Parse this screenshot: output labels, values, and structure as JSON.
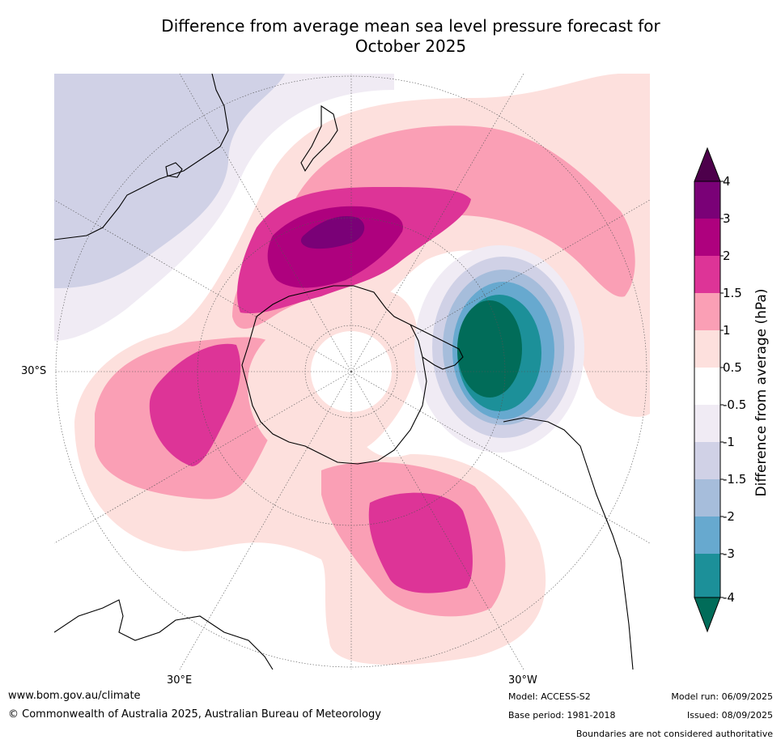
{
  "title_line1": "Difference from average mean sea level pressure forecast for",
  "title_line2": "October 2025",
  "map": {
    "lat_labels": [
      "30°S"
    ],
    "lon_labels": [
      "30°E",
      "30°W"
    ],
    "colors": {
      "land_coastline": "#000000",
      "graticule": "#555555",
      "bg_positive_far": "#d0d1e6",
      "neutral": "#ffffff"
    },
    "features": [
      {
        "name": "positive-anomaly-south-pacific",
        "max_category": "3 to 4"
      },
      {
        "name": "positive-anomaly-indian-ocean",
        "max_category": "1.5 to 2"
      },
      {
        "name": "positive-anomaly-south-atlantic",
        "max_category": "1.5 to 2"
      },
      {
        "name": "negative-anomaly-drake-passage",
        "min_category": "below -4"
      },
      {
        "name": "negative-anomaly-australia",
        "min_category": "-1.5 to -1"
      }
    ]
  },
  "colorbar": {
    "title": "Difference from average (hPa)",
    "ticks": [
      "4",
      "3",
      "2",
      "1.5",
      "1",
      "0.5",
      "-0.5",
      "-1",
      "-1.5",
      "-2",
      "-3",
      "-4"
    ],
    "bins": [
      {
        "range": ">4",
        "color": "#4d004b"
      },
      {
        "range": "3 to 4",
        "color": "#7a0177"
      },
      {
        "range": "2 to 3",
        "color": "#ae017e"
      },
      {
        "range": "1.5 to 2",
        "color": "#dd3497"
      },
      {
        "range": "1 to 1.5",
        "color": "#fa9fb5"
      },
      {
        "range": "0.5 to 1",
        "color": "#fde0dd"
      },
      {
        "range": "-0.5 to 0.5",
        "color": "#ffffff"
      },
      {
        "range": "-1 to -0.5",
        "color": "#f0ebf4"
      },
      {
        "range": "-1.5 to -1",
        "color": "#d0d1e6"
      },
      {
        "range": "-2 to -1.5",
        "color": "#a6bddb"
      },
      {
        "range": "-3 to -2",
        "color": "#67a9cf"
      },
      {
        "range": "-4 to -3",
        "color": "#1c9099"
      },
      {
        "range": "<-4",
        "color": "#016c59"
      }
    ]
  },
  "footer": {
    "website": "www.bom.gov.au/climate",
    "copyright": "© Commonwealth of Australia 2025, Australian Bureau of Meteorology",
    "model": "Model: ACCESS-S2",
    "base_period": "Base period: 1981-2018",
    "model_run": "Model run: 06/09/2025",
    "issued": "Issued: 08/09/2025",
    "disclaimer": "Boundaries are not considered authoritative"
  }
}
